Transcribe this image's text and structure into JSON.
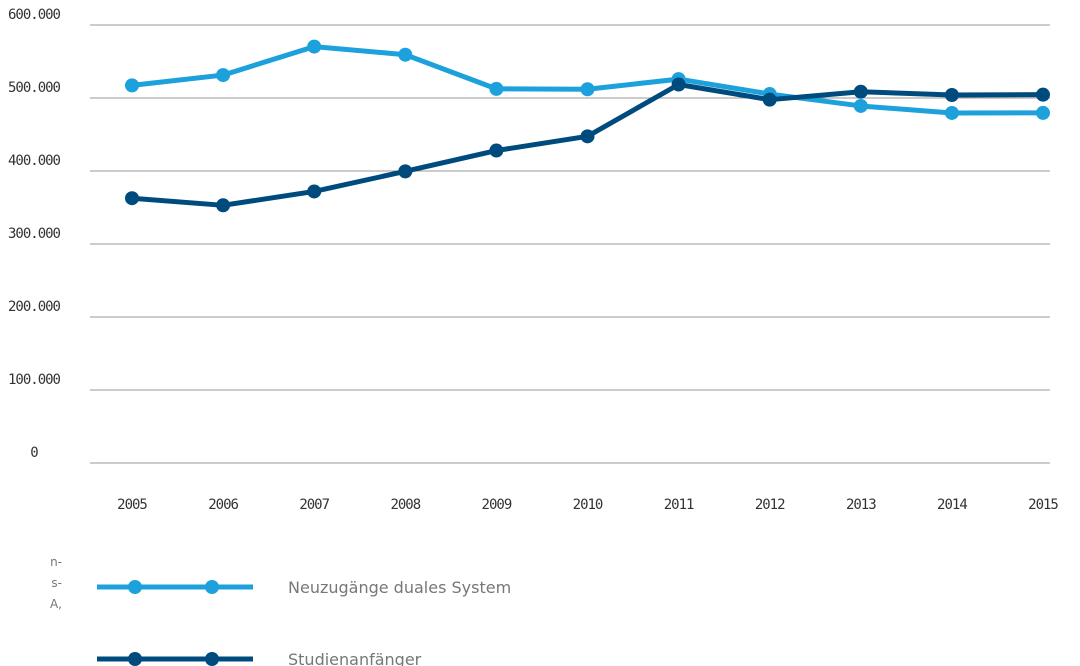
{
  "chart_data": {
    "type": "line",
    "x": [
      "2005",
      "2006",
      "2007",
      "2008",
      "2009",
      "2010",
      "2011",
      "2012",
      "2013",
      "2014",
      "2015"
    ],
    "ylim": [
      0,
      600000
    ],
    "yticks": [
      0,
      100000,
      200000,
      300000,
      400000,
      500000,
      600000
    ],
    "ytick_labels": [
      "0",
      "100.000",
      "200.000",
      "300.000",
      "400.000",
      "500.000",
      "600.000"
    ],
    "grid": "horizontal",
    "legend_position": "bottom",
    "series": [
      {
        "name": "Neuzugänge duales System",
        "color": "#1da1dc",
        "values": [
          517300,
          531400,
          570400,
          559300,
          512500,
          512000,
          525900,
          505400,
          489100,
          479500,
          479600
        ]
      },
      {
        "name": "Studienanfänger",
        "color": "#004b7d",
        "values": [
          362700,
          353000,
          372000,
          399500,
          428000,
          447500,
          518500,
          497700,
          508600,
          504100,
          504600
        ]
      }
    ]
  },
  "side_note_fragments": [
    "n-",
    "s-",
    "A,"
  ]
}
